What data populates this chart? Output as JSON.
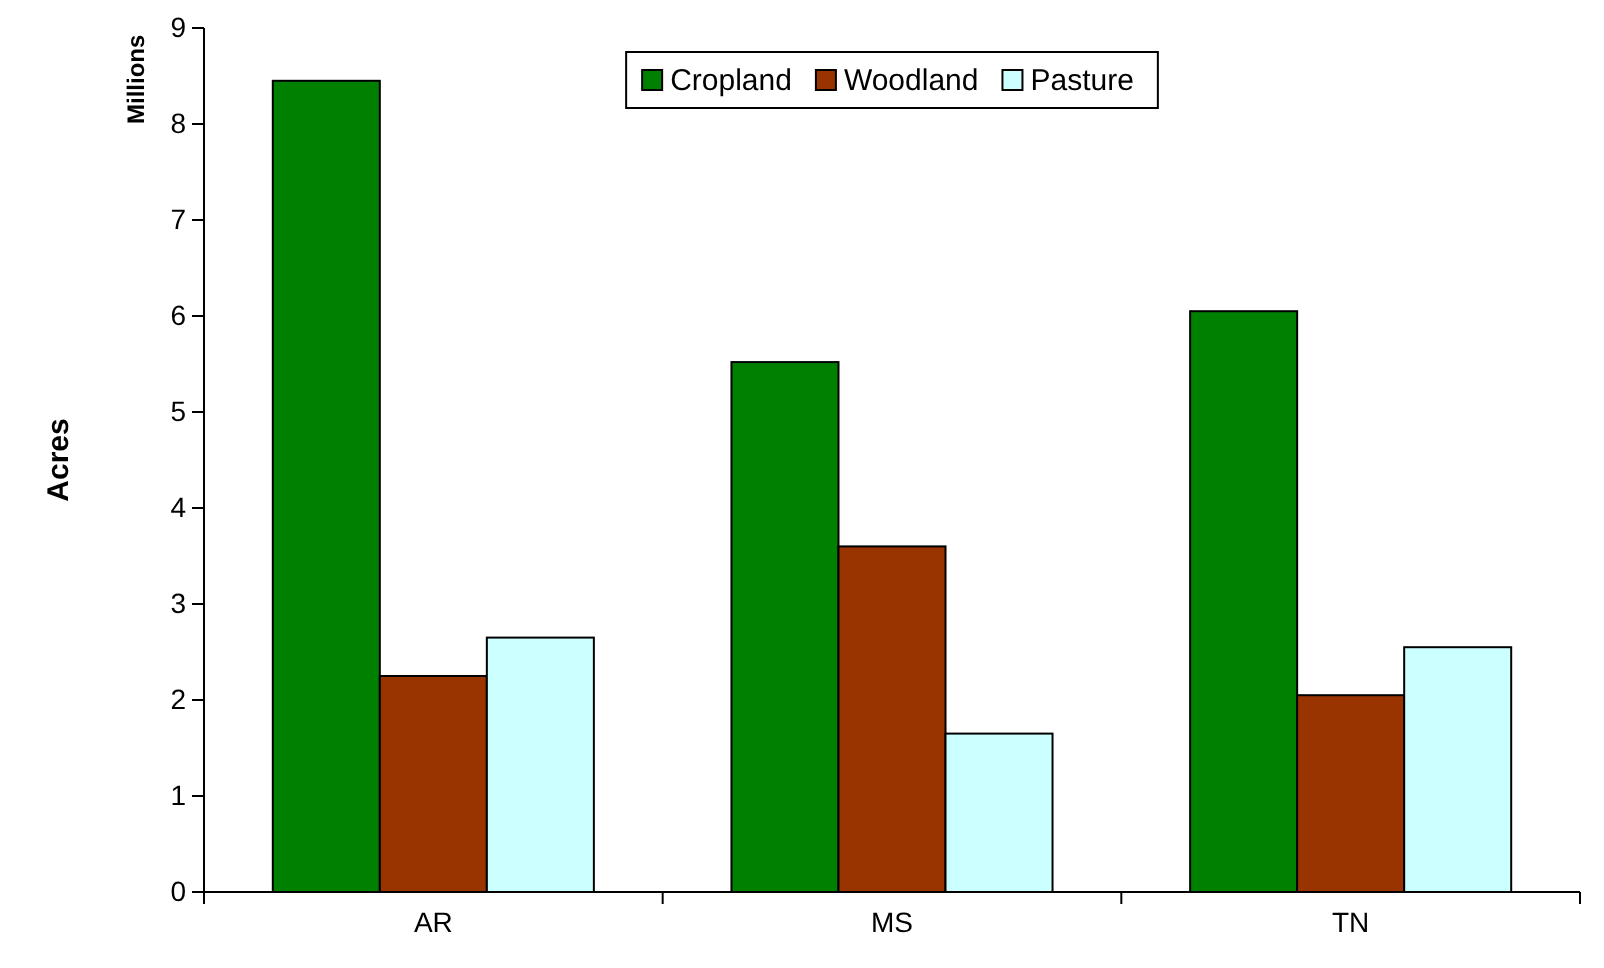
{
  "chart_data": {
    "type": "bar",
    "ylabel": "Acres",
    "annotations": [
      "Millions"
    ],
    "categories": [
      "AR",
      "MS",
      "TN"
    ],
    "series": [
      {
        "name": "Cropland",
        "color": "#008000",
        "values": [
          8.45,
          5.52,
          6.05
        ]
      },
      {
        "name": "Woodland",
        "color": "#993300",
        "values": [
          2.25,
          3.6,
          2.05
        ]
      },
      {
        "name": "Pasture",
        "color": "#ccffff",
        "values": [
          2.65,
          1.65,
          2.55
        ]
      }
    ],
    "ylim": [
      0,
      9
    ],
    "yticks": [
      0,
      1,
      2,
      3,
      4,
      5,
      6,
      7,
      8,
      9
    ],
    "legend": "top"
  }
}
